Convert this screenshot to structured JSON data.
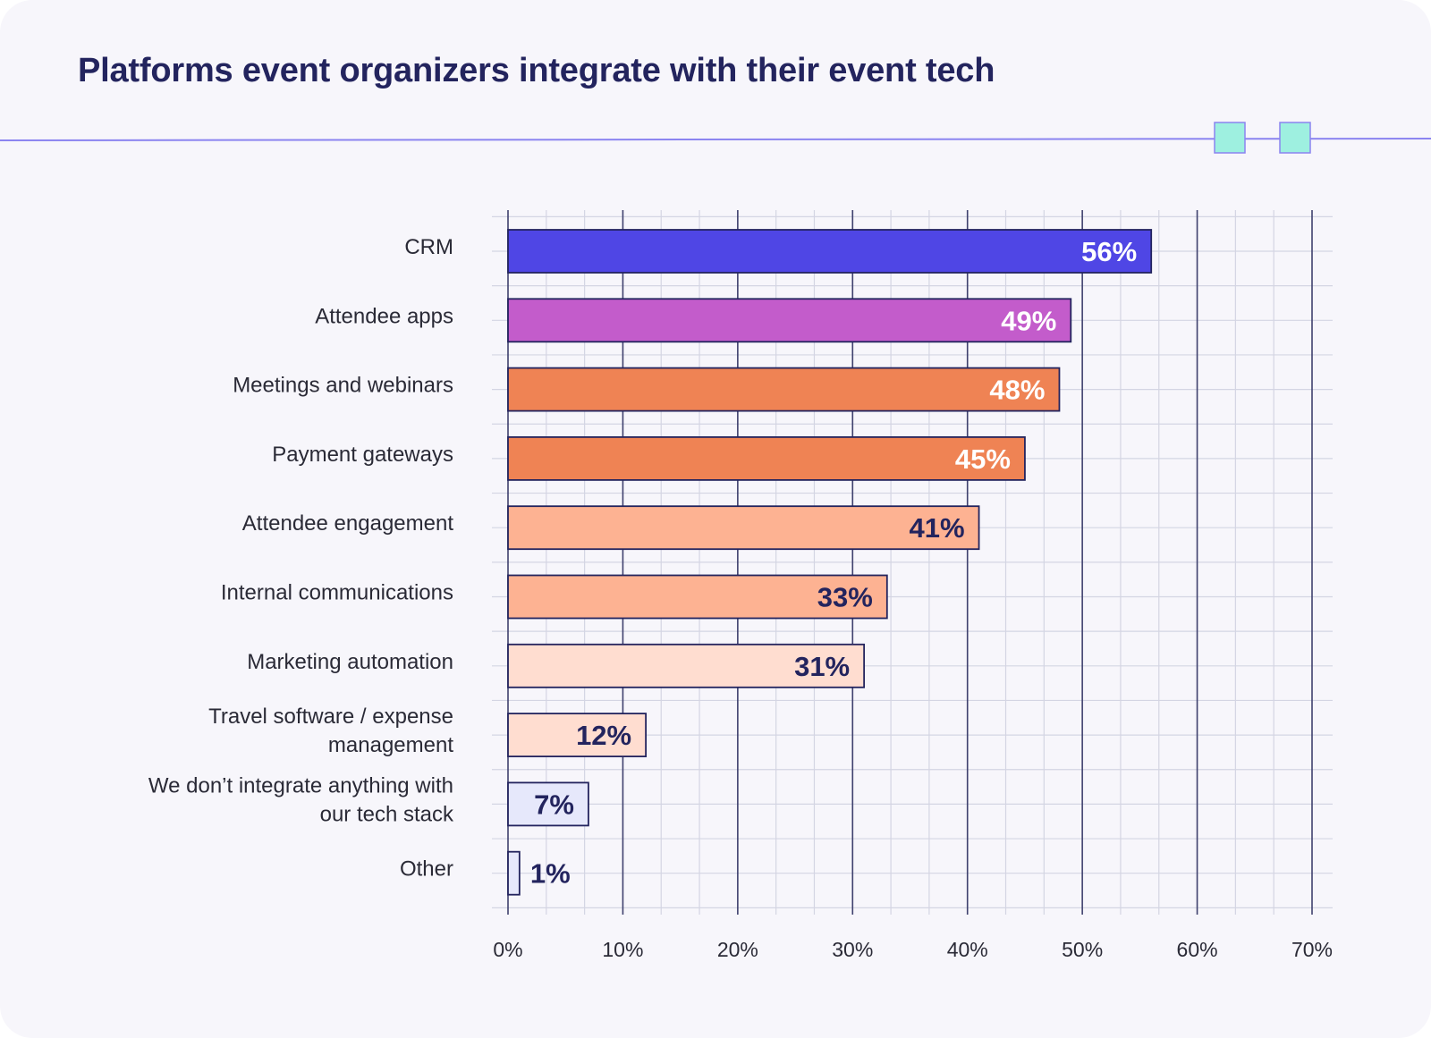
{
  "chart_data": {
    "type": "bar",
    "orientation": "horizontal",
    "title": "Platforms event organizers integrate with their event tech",
    "xlabel": "",
    "ylabel": "",
    "xlim": [
      0,
      70
    ],
    "tick_step": 10,
    "minor_step": 3.3333,
    "tick_suffix": "%",
    "grid": true,
    "categories": [
      [
        "CRM"
      ],
      [
        "Attendee apps"
      ],
      [
        "Meetings and webinars"
      ],
      [
        "Payment gateways"
      ],
      [
        "Attendee engagement"
      ],
      [
        "Internal communications"
      ],
      [
        "Marketing automation"
      ],
      [
        "Travel software / expense",
        "management"
      ],
      [
        "We don’t integrate anything with",
        "our tech stack"
      ],
      [
        "Other"
      ]
    ],
    "values": [
      56,
      49,
      48,
      45,
      41,
      33,
      31,
      12,
      7,
      1
    ],
    "value_labels": [
      "56%",
      "49%",
      "48%",
      "45%",
      "41%",
      "33%",
      "31%",
      "12%",
      "7%",
      "1%"
    ],
    "bar_colors": [
      "#4f46e5",
      "#c35ccb",
      "#ef8354",
      "#ef8354",
      "#fdb292",
      "#fdb292",
      "#ffddd0",
      "#ffddd0",
      "#e6e8fb",
      "#e6e8fb"
    ],
    "label_colors": [
      "#ffffff",
      "#ffffff",
      "#ffffff",
      "#ffffff",
      "#23245e",
      "#23245e",
      "#23245e",
      "#23245e",
      "#23245e",
      "#23245e"
    ]
  },
  "colors": {
    "background": "#f7f6fb",
    "title": "#23245e",
    "bar_outline": "#23245e",
    "accent_line": "#8b84f0",
    "accent_squares": "#9ef0e0",
    "major_grid": "#3f416e",
    "minor_grid": "#d4d5e3"
  }
}
